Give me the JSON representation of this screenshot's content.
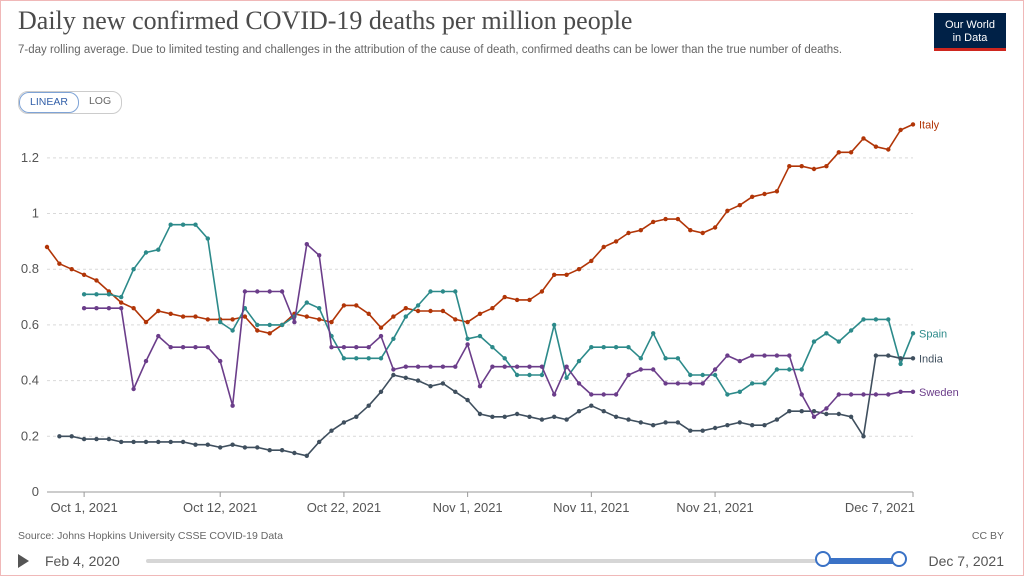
{
  "header": {
    "title": "Daily new confirmed COVID-19 deaths per million people",
    "subtitle": "7-day rolling average. Due to limited testing and challenges in the attribution of the cause of death, confirmed deaths can be lower than the true number of deaths.",
    "logo_line1": "Our World",
    "logo_line2": "in Data"
  },
  "scale_toggle": {
    "linear": "LINEAR",
    "log": "LOG",
    "selected": "LINEAR"
  },
  "footer": {
    "source": "Source: Johns Hopkins University CSSE COVID-19 Data",
    "license": "CC BY"
  },
  "timeline": {
    "start": "Feb 4, 2020",
    "end": "Dec 7, 2021"
  },
  "chart_data": {
    "type": "line",
    "title": "Daily new confirmed COVID-19 deaths per million people",
    "xlabel": "",
    "ylabel": "",
    "ylim": [
      0,
      1.3
    ],
    "yticks": [
      0,
      0.2,
      0.4,
      0.6,
      0.8,
      1,
      1.2
    ],
    "ytick_labels": [
      "0",
      "0.2",
      "0.4",
      "0.6",
      "0.8",
      "1",
      "1.2"
    ],
    "xticks": [
      {
        "day": 3,
        "label": "Oct 1, 2021"
      },
      {
        "day": 14,
        "label": "Oct 12, 2021"
      },
      {
        "day": 24,
        "label": "Oct 22, 2021"
      },
      {
        "day": 34,
        "label": "Nov 1, 2021"
      },
      {
        "day": 44,
        "label": "Nov 11, 2021"
      },
      {
        "day": 54,
        "label": "Nov 21, 2021"
      },
      {
        "day": 70,
        "label": "Dec 7, 2021"
      }
    ],
    "x_start": "Sep 28, 2021",
    "x_end": "Dec 7, 2021",
    "grid": true,
    "series": [
      {
        "name": "Italy",
        "color": "#b13507",
        "values": [
          0.88,
          0.82,
          0.8,
          0.78,
          0.76,
          0.72,
          0.68,
          0.66,
          0.61,
          0.65,
          0.64,
          0.63,
          0.63,
          0.62,
          0.62,
          0.62,
          0.63,
          0.58,
          0.57,
          0.6,
          0.64,
          0.63,
          0.62,
          0.61,
          0.67,
          0.67,
          0.64,
          0.59,
          0.63,
          0.66,
          0.65,
          0.65,
          0.65,
          0.62,
          0.61,
          0.64,
          0.66,
          0.7,
          0.69,
          0.69,
          0.72,
          0.78,
          0.78,
          0.8,
          0.83,
          0.88,
          0.9,
          0.93,
          0.94,
          0.97,
          0.98,
          0.98,
          0.94,
          0.93,
          0.95,
          1.01,
          1.03,
          1.06,
          1.07,
          1.08,
          1.17,
          1.17,
          1.16,
          1.17,
          1.22,
          1.22,
          1.27,
          1.24,
          1.23,
          1.3,
          1.32
        ]
      },
      {
        "name": "Spain",
        "color": "#2c8a8a",
        "values": [
          0.71,
          0.71,
          0.71,
          0.7,
          0.8,
          0.86,
          0.87,
          0.96,
          0.96,
          0.96,
          0.91,
          0.61,
          0.58,
          0.66,
          0.6,
          0.6,
          0.6,
          0.63,
          0.68,
          0.66,
          0.56,
          0.48,
          0.48,
          0.48,
          0.48,
          0.55,
          0.63,
          0.67,
          0.72,
          0.72,
          0.72,
          0.55,
          0.56,
          0.52,
          0.48,
          0.42,
          0.42,
          0.42,
          0.6,
          0.41,
          0.47,
          0.52,
          0.52,
          0.52,
          0.52,
          0.48,
          0.57,
          0.48,
          0.48,
          0.42,
          0.42,
          0.42,
          0.35,
          0.36,
          0.39,
          0.39,
          0.44,
          0.44,
          0.44,
          0.54,
          0.57,
          0.54,
          0.58,
          0.62,
          0.62,
          0.62,
          0.46,
          0.57
        ]
      },
      {
        "name": "India",
        "color": "#3f4f5e",
        "values": [
          0.2,
          0.2,
          0.19,
          0.19,
          0.19,
          0.18,
          0.18,
          0.18,
          0.18,
          0.18,
          0.18,
          0.17,
          0.17,
          0.16,
          0.17,
          0.16,
          0.16,
          0.15,
          0.15,
          0.14,
          0.13,
          0.18,
          0.22,
          0.25,
          0.27,
          0.31,
          0.36,
          0.42,
          0.41,
          0.4,
          0.38,
          0.39,
          0.36,
          0.33,
          0.28,
          0.27,
          0.27,
          0.28,
          0.27,
          0.26,
          0.27,
          0.26,
          0.29,
          0.31,
          0.29,
          0.27,
          0.26,
          0.25,
          0.24,
          0.25,
          0.25,
          0.22,
          0.22,
          0.23,
          0.24,
          0.25,
          0.24,
          0.24,
          0.26,
          0.29,
          0.29,
          0.29,
          0.28,
          0.28,
          0.27,
          0.2,
          0.49,
          0.49,
          0.48,
          0.48
        ]
      },
      {
        "name": "Sweden",
        "color": "#6b3d8a",
        "values": [
          0.66,
          0.66,
          0.66,
          0.66,
          0.37,
          0.47,
          0.56,
          0.52,
          0.52,
          0.52,
          0.52,
          0.47,
          0.31,
          0.72,
          0.72,
          0.72,
          0.72,
          0.61,
          0.89,
          0.85,
          0.52,
          0.52,
          0.52,
          0.52,
          0.56,
          0.44,
          0.45,
          0.45,
          0.45,
          0.45,
          0.45,
          0.53,
          0.38,
          0.45,
          0.45,
          0.45,
          0.45,
          0.45,
          0.35,
          0.45,
          0.39,
          0.35,
          0.35,
          0.35,
          0.42,
          0.44,
          0.44,
          0.39,
          0.39,
          0.39,
          0.39,
          0.44,
          0.49,
          0.47,
          0.49,
          0.49,
          0.49,
          0.49,
          0.35,
          0.27,
          0.3,
          0.35,
          0.35,
          0.35,
          0.35,
          0.35,
          0.36,
          0.36
        ]
      }
    ]
  }
}
